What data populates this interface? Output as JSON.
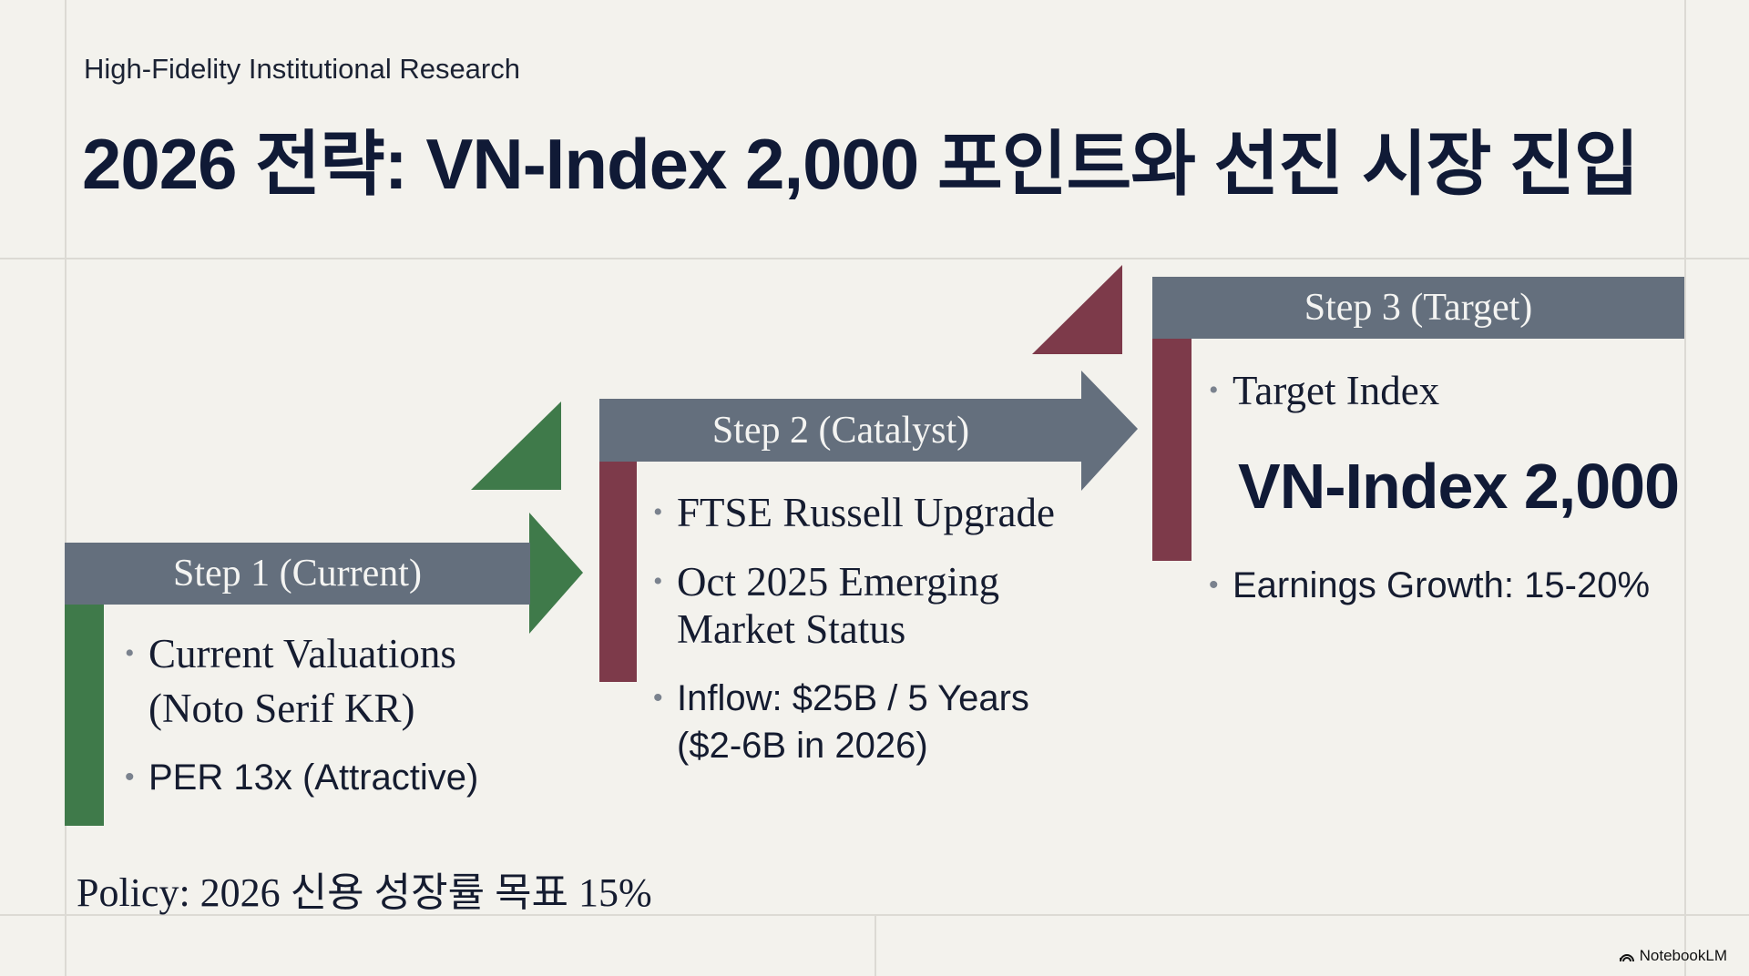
{
  "header": {
    "subtitle": "High-Fidelity Institutional Research",
    "title": "2026 전략: VN-Index 2,000 포인트와 선진 시장 진입"
  },
  "colors": {
    "step_bar": "#646f7d",
    "green": "#3f7a4a",
    "red": "#7d3a4a",
    "text": "#101a36",
    "background": "#f3f2ed"
  },
  "steps": [
    {
      "label": "Step 1 (Current)",
      "items": [
        {
          "lines": [
            "Current Valuations",
            "(Noto Serif KR)"
          ]
        },
        {
          "lines": [
            "PER 13x (Attractive)"
          ]
        }
      ]
    },
    {
      "label": "Step 2 (Catalyst)",
      "items": [
        {
          "lines": [
            "FTSE Russell Upgrade"
          ]
        },
        {
          "lines": [
            "Oct 2025 Emerging",
            "Market Status"
          ]
        },
        {
          "lines": [
            "Inflow: $25B / 5 Years",
            "($2-6B in 2026)"
          ]
        }
      ]
    },
    {
      "label": "Step 3 (Target)",
      "items": [
        {
          "lines": [
            "Target Index"
          ]
        },
        {
          "highlight": "VN-Index 2,000"
        },
        {
          "lines": [
            "Earnings Growth: 15-20%"
          ]
        }
      ]
    }
  ],
  "footer": {
    "policy": "Policy: 2026 신용 성장률 목표 15%",
    "brand": "NotebookLM"
  }
}
